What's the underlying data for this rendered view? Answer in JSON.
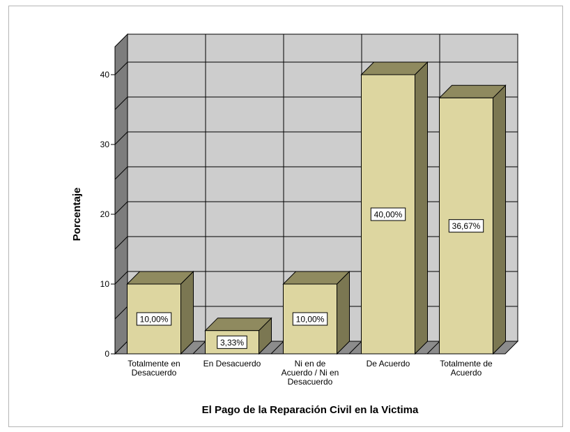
{
  "chart_data": {
    "type": "bar",
    "title": "",
    "xlabel": "El Pago de la Reparación Civil en la Victima",
    "ylabel": "Porcentaje",
    "categories": [
      [
        "Totalmente en",
        "Desacuerdo"
      ],
      [
        "En Desacuerdo"
      ],
      [
        "Ni en de",
        "Acuerdo / Ni en",
        "Desacuerdo"
      ],
      [
        "De Acuerdo"
      ],
      [
        "Totalmente de",
        "Acuerdo"
      ]
    ],
    "values": [
      10.0,
      3.33,
      10.0,
      40.0,
      36.67
    ],
    "value_labels": [
      "10,00%",
      "3,33%",
      "10,00%",
      "40,00%",
      "36,67%"
    ],
    "yticks": [
      0,
      10,
      20,
      30,
      40
    ],
    "ylim": [
      0,
      44
    ],
    "grid": true,
    "legend": "none",
    "style": "3d",
    "colors": {
      "bar_front": "#ddd6a0",
      "bar_top": "#8f8a5f",
      "bar_side": "#7b7752",
      "wall": "#cdcdcd",
      "floor": "#8c8c8c",
      "left_wall": "#7d7d7d"
    }
  }
}
